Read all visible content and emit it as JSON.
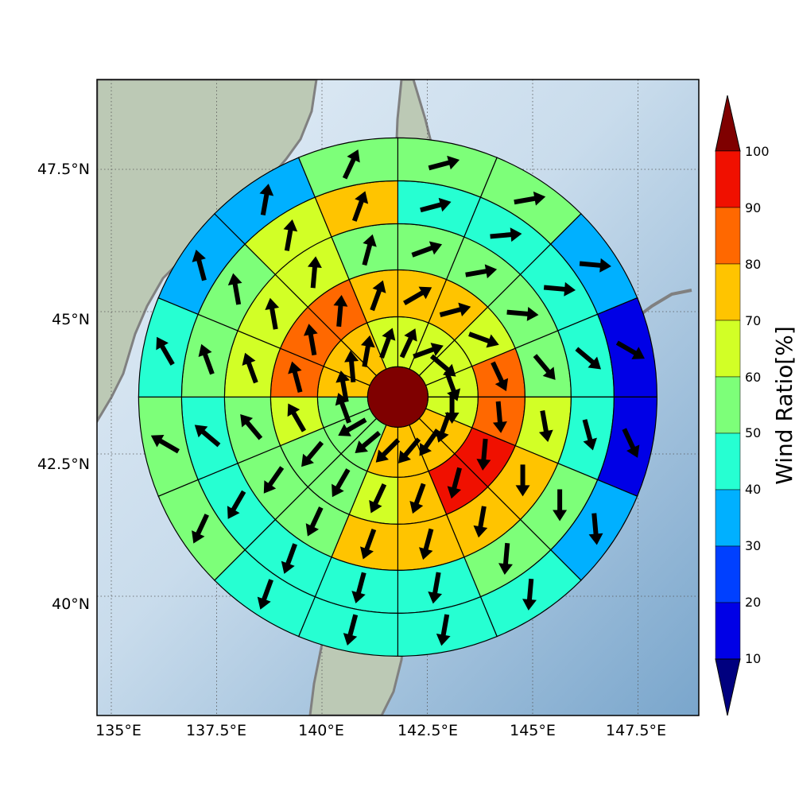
{
  "colors": {
    "ocean_light": "#d9e8f4",
    "ocean_dark": "#7aa6cc",
    "land": "#b8cbb8",
    "coast": "#808080",
    "eye": "#7f0000",
    "arrow": "#000000"
  },
  "map": {
    "lon_ticks": [
      "135°E",
      "137.5°E",
      "140°E",
      "142.5°E",
      "145°E",
      "147.5°E"
    ],
    "lat_ticks": [
      "47.5°N",
      "45°N",
      "42.5°N",
      "40°N"
    ]
  },
  "colorbar": {
    "title": "Wind Ratio[%]",
    "labels": [
      "10",
      "20",
      "30",
      "40",
      "50",
      "60",
      "70",
      "80",
      "90",
      "100"
    ],
    "under_color": "#00007f",
    "over_color": "#7f0000",
    "colors": [
      "#0000e6",
      "#0040ff",
      "#00b0ff",
      "#26ffd2",
      "#7dff79",
      "#d2ff26",
      "#ffc400",
      "#ff6800",
      "#f01000"
    ]
  },
  "chart_data": {
    "type": "heatmap",
    "title": "",
    "center": {
      "lon": 141.8,
      "lat": 43.5
    },
    "ring_count": 5,
    "sector_count": 16,
    "sector_order": "clockwise from north",
    "value_unit": "Wind Ratio [%]",
    "ring_values": [
      [
        65,
        65,
        60,
        60,
        60,
        75,
        75,
        75,
        75,
        55,
        55,
        55,
        75,
        75,
        75,
        65
      ],
      [
        75,
        75,
        65,
        85,
        85,
        95,
        95,
        75,
        65,
        55,
        55,
        65,
        85,
        85,
        85,
        75
      ],
      [
        55,
        55,
        55,
        55,
        65,
        75,
        75,
        75,
        75,
        55,
        55,
        55,
        65,
        65,
        65,
        55
      ],
      [
        45,
        45,
        45,
        45,
        45,
        55,
        55,
        45,
        45,
        45,
        45,
        45,
        55,
        55,
        65,
        75
      ],
      [
        55,
        55,
        35,
        15,
        15,
        35,
        45,
        45,
        45,
        45,
        55,
        55,
        45,
        35,
        35,
        55
      ]
    ],
    "wind_direction_deg": [
      [
        25,
        70,
        130,
        160,
        180,
        200,
        215,
        220,
        225,
        230,
        240,
        340,
        350,
        355,
        10,
        20
      ],
      [
        60,
        75,
        110,
        155,
        175,
        185,
        195,
        200,
        205,
        210,
        220,
        330,
        345,
        350,
        5,
        20
      ],
      [
        70,
        80,
        95,
        140,
        170,
        180,
        190,
        195,
        200,
        205,
        215,
        320,
        340,
        350,
        5,
        15
      ],
      [
        75,
        85,
        95,
        130,
        165,
        180,
        185,
        190,
        195,
        200,
        210,
        310,
        340,
        350,
        10,
        20
      ],
      [
        75,
        80,
        95,
        120,
        155,
        175,
        185,
        190,
        195,
        200,
        205,
        300,
        330,
        345,
        10,
        25
      ]
    ]
  }
}
